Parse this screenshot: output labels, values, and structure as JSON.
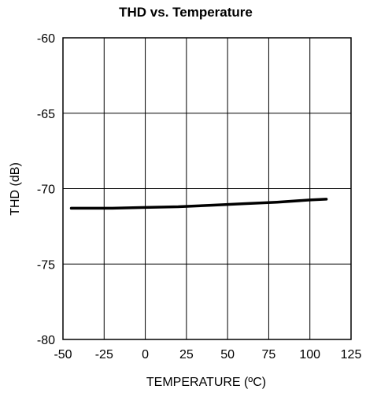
{
  "chart_data": {
    "type": "line",
    "title": "THD vs. Temperature",
    "xlabel": "TEMPERATURE (ºC)",
    "ylabel": "THD (dB)",
    "xlim": [
      -50,
      125
    ],
    "ylim": [
      -80,
      -60
    ],
    "xticks": [
      "-50",
      "-25",
      "0",
      "25",
      "50",
      "75",
      "100",
      "125"
    ],
    "yticks": [
      "-60",
      "-65",
      "-70",
      "-75",
      "-80"
    ],
    "grid": true,
    "series": [
      {
        "x": [
          -45,
          -20,
          0,
          20,
          40,
          60,
          80,
          100,
          110
        ],
        "y": [
          -71.3,
          -71.3,
          -71.25,
          -71.2,
          -71.1,
          -71.0,
          -70.9,
          -70.75,
          -70.7
        ]
      }
    ],
    "line_color": "#000000"
  }
}
